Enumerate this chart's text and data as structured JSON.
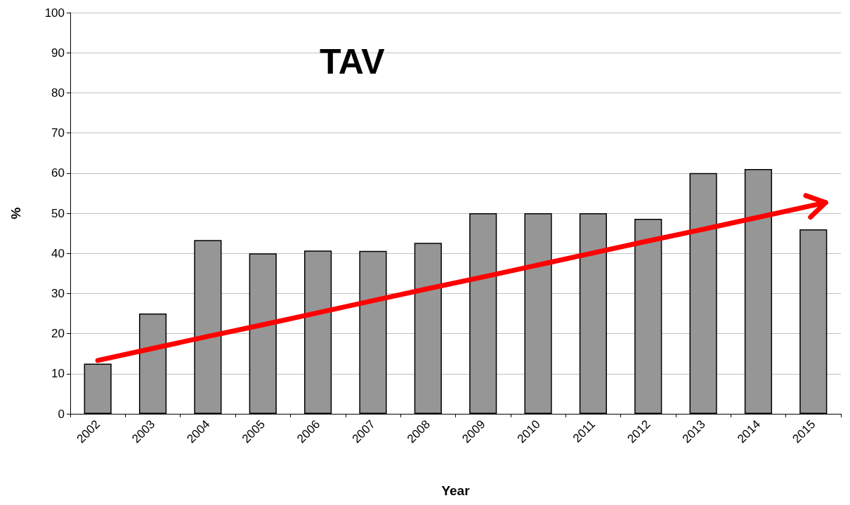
{
  "chart_data": {
    "type": "bar",
    "title": "TAV",
    "xlabel": "Year",
    "ylabel": "%",
    "categories": [
      "2002",
      "2003",
      "2004",
      "2005",
      "2006",
      "2007",
      "2008",
      "2009",
      "2010",
      "2011",
      "2012",
      "2013",
      "2014",
      "2015"
    ],
    "series": [
      {
        "color": "#969696",
        "values": [
          12.5,
          25,
          43.3,
          40,
          40.7,
          40.6,
          42.6,
          50,
          50,
          50,
          48.6,
          60,
          61,
          46
        ]
      },
      {
        "type": "line",
        "color": "#ff0000",
        "values": [
          13.3,
          16.3,
          19.3,
          22.2,
          25.2,
          28.2,
          31.2,
          34.1,
          37.1,
          40.1,
          43.1,
          46.0,
          49.0,
          52.0
        ]
      }
    ],
    "ylim": [
      0,
      100
    ],
    "yticks": [
      0,
      10,
      20,
      30,
      40,
      50,
      60,
      70,
      80,
      90,
      100
    ],
    "grid": "y"
  }
}
